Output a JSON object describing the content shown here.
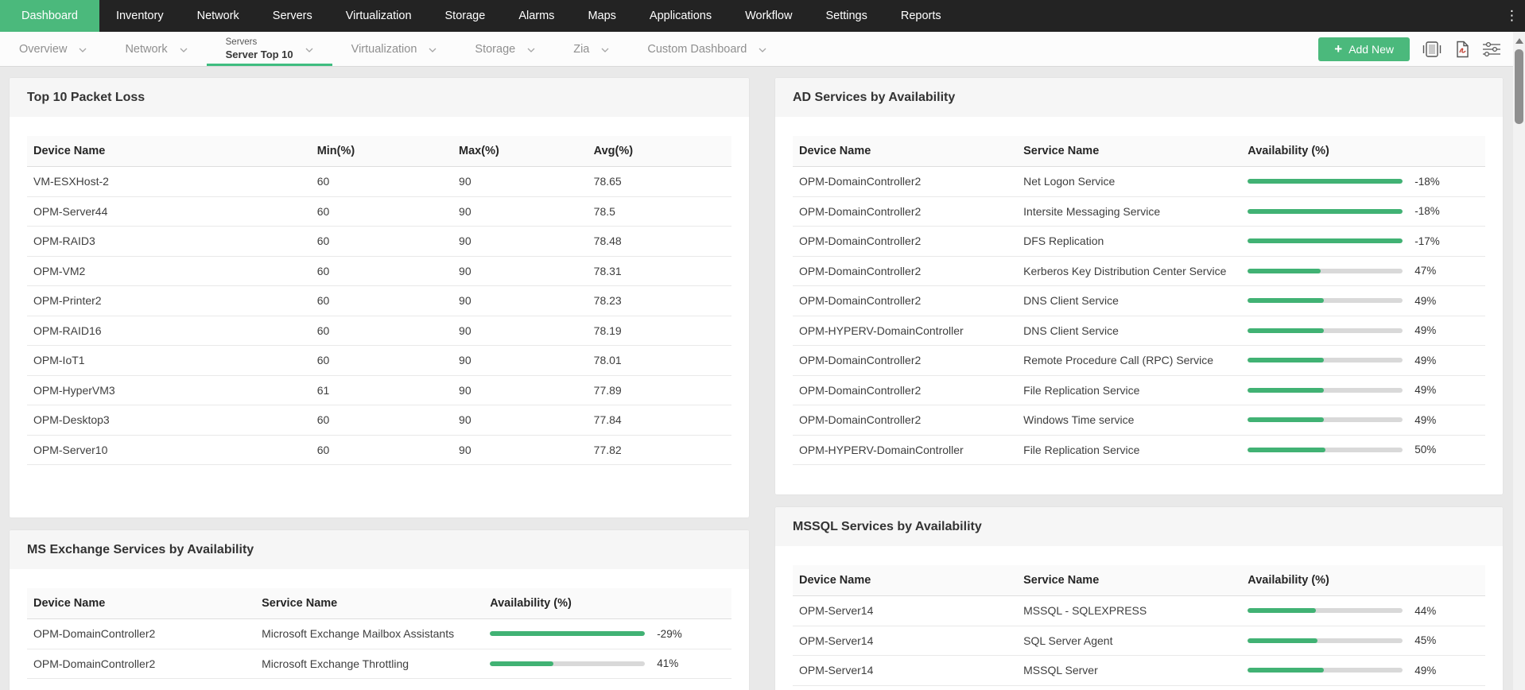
{
  "colors": {
    "accent": "#4bb97c",
    "bar_fill": "#41b274",
    "bar_track": "#d9d9d9",
    "nav_bg": "#232323"
  },
  "icons": {
    "kebab": "⋮",
    "plus": "+"
  },
  "nav": {
    "items": [
      {
        "label": "Dashboard",
        "active": true
      },
      {
        "label": "Inventory"
      },
      {
        "label": "Network"
      },
      {
        "label": "Servers"
      },
      {
        "label": "Virtualization"
      },
      {
        "label": "Storage"
      },
      {
        "label": "Alarms"
      },
      {
        "label": "Maps"
      },
      {
        "label": "Applications"
      },
      {
        "label": "Workflow"
      },
      {
        "label": "Settings"
      },
      {
        "label": "Reports"
      }
    ]
  },
  "toolbar": {
    "tabs": [
      {
        "label": "Overview"
      },
      {
        "label": "Network"
      },
      {
        "sublabel": "Servers",
        "label": "Server Top 10",
        "active": true
      },
      {
        "label": "Virtualization"
      },
      {
        "label": "Storage"
      },
      {
        "label": "Zia"
      },
      {
        "label": "Custom Dashboard"
      }
    ],
    "add_new": {
      "plus": "+",
      "label": "Add New"
    }
  },
  "panels": [
    {
      "id": "packet-loss",
      "title": "Top 10 Packet Loss",
      "row_type": "text",
      "columns": [
        "Device Name",
        "Min(%)",
        "Max(%)",
        "Avg(%)"
      ],
      "rows": [
        [
          "VM-ESXHost-2",
          "60",
          "90",
          "78.65"
        ],
        [
          "OPM-Server44",
          "60",
          "90",
          "78.5"
        ],
        [
          "OPM-RAID3",
          "60",
          "90",
          "78.48"
        ],
        [
          "OPM-VM2",
          "60",
          "90",
          "78.31"
        ],
        [
          "OPM-Printer2",
          "60",
          "90",
          "78.23"
        ],
        [
          "OPM-RAID16",
          "60",
          "90",
          "78.19"
        ],
        [
          "OPM-IoT1",
          "60",
          "90",
          "78.01"
        ],
        [
          "OPM-HyperVM3",
          "61",
          "90",
          "77.89"
        ],
        [
          "OPM-Desktop3",
          "60",
          "90",
          "77.84"
        ],
        [
          "OPM-Server10",
          "60",
          "90",
          "77.82"
        ]
      ]
    },
    {
      "id": "ad-services",
      "title": "AD Services by Availability",
      "row_type": "bar",
      "columns": [
        "Device Name",
        "Service Name",
        "Availability (%)"
      ],
      "rows": [
        {
          "device": "OPM-DomainController2",
          "service": "Net Logon Service",
          "label": "-18%",
          "fill": 100
        },
        {
          "device": "OPM-DomainController2",
          "service": "Intersite Messaging Service",
          "label": "-18%",
          "fill": 100
        },
        {
          "device": "OPM-DomainController2",
          "service": "DFS Replication",
          "label": "-17%",
          "fill": 100
        },
        {
          "device": "OPM-DomainController2",
          "service": "Kerberos Key Distribution Center Service",
          "label": "47%",
          "fill": 47
        },
        {
          "device": "OPM-DomainController2",
          "service": "DNS Client Service",
          "label": "49%",
          "fill": 49
        },
        {
          "device": "OPM-HYPERV-DomainController",
          "service": "DNS Client Service",
          "label": "49%",
          "fill": 49
        },
        {
          "device": "OPM-DomainController2",
          "service": "Remote Procedure Call (RPC) Service",
          "label": "49%",
          "fill": 49
        },
        {
          "device": "OPM-DomainController2",
          "service": "File Replication Service",
          "label": "49%",
          "fill": 49
        },
        {
          "device": "OPM-DomainController2",
          "service": "Windows Time service",
          "label": "49%",
          "fill": 49
        },
        {
          "device": "OPM-HYPERV-DomainController",
          "service": "File Replication Service",
          "label": "50%",
          "fill": 50
        }
      ]
    },
    {
      "id": "exchange",
      "title": "MS Exchange Services by Availability",
      "row_type": "bar",
      "columns": [
        "Device Name",
        "Service Name",
        "Availability (%)"
      ],
      "rows": [
        {
          "device": "OPM-DomainController2",
          "service": "Microsoft Exchange Mailbox Assistants",
          "label": "-29%",
          "fill": 100
        },
        {
          "device": "OPM-DomainController2",
          "service": "Microsoft Exchange Throttling",
          "label": "41%",
          "fill": 41
        }
      ]
    },
    {
      "id": "mssql",
      "title": "MSSQL Services by Availability",
      "row_type": "bar",
      "columns": [
        "Device Name",
        "Service Name",
        "Availability (%)"
      ],
      "rows": [
        {
          "device": "OPM-Server14",
          "service": "MSSQL - SQLEXPRESS",
          "label": "44%",
          "fill": 44
        },
        {
          "device": "OPM-Server14",
          "service": "SQL Server Agent",
          "label": "45%",
          "fill": 45
        },
        {
          "device": "OPM-Server14",
          "service": "MSSQL Server",
          "label": "49%",
          "fill": 49
        }
      ]
    }
  ]
}
